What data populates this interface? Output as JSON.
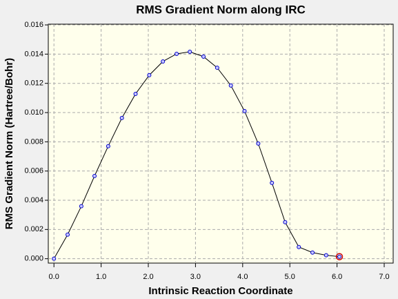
{
  "chart_data": {
    "type": "line",
    "title": "RMS Gradient Norm along IRC",
    "x_label": "Intrinsic Reaction Coordinate",
    "y_label": "RMS Gradient Norm (Hartree/Bohr)",
    "x": [
      0.0,
      0.29,
      0.58,
      0.86,
      1.15,
      1.44,
      1.73,
      2.02,
      2.31,
      2.6,
      2.88,
      3.17,
      3.46,
      3.75,
      4.04,
      4.33,
      4.62,
      4.9,
      5.19,
      5.48,
      5.77,
      6.05
    ],
    "series": [
      {
        "name": "RMS Gradient Norm",
        "color": "#0000cc",
        "values": [
          0.0,
          0.00165,
          0.00359,
          0.00566,
          0.0077,
          0.00963,
          0.01128,
          0.01256,
          0.0135,
          0.01402,
          0.01416,
          0.01383,
          0.01307,
          0.01185,
          0.0101,
          0.00788,
          0.00519,
          0.0025,
          0.0008,
          0.00042,
          0.00024,
          0.00014
        ]
      }
    ],
    "xlim": [
      -0.12,
      7.19
    ],
    "ylim": [
      -0.0003,
      0.01605
    ],
    "xticks": [
      {
        "value": 0,
        "label": "0.0"
      },
      {
        "value": 1,
        "label": "1.0"
      },
      {
        "value": 2,
        "label": "2.0"
      },
      {
        "value": 3,
        "label": "3.0"
      },
      {
        "value": 4,
        "label": "4.0"
      },
      {
        "value": 5,
        "label": "5.0"
      },
      {
        "value": 6,
        "label": "6.0"
      },
      {
        "value": 7,
        "label": "7.0"
      }
    ],
    "yticks": [
      {
        "value": 0,
        "label": "0.000"
      },
      {
        "value": 0.002,
        "label": "0.002"
      },
      {
        "value": 0.004,
        "label": "0.004"
      },
      {
        "value": 0.006,
        "label": "0.006"
      },
      {
        "value": 0.008,
        "label": "0.008"
      },
      {
        "value": 0.01,
        "label": "0.010"
      },
      {
        "value": 0.012,
        "label": "0.012"
      },
      {
        "value": 0.014,
        "label": "0.014"
      },
      {
        "value": 0.016,
        "label": "0.016"
      }
    ],
    "grid": true,
    "highlight": {
      "index": 21,
      "color": "#d00000"
    }
  }
}
